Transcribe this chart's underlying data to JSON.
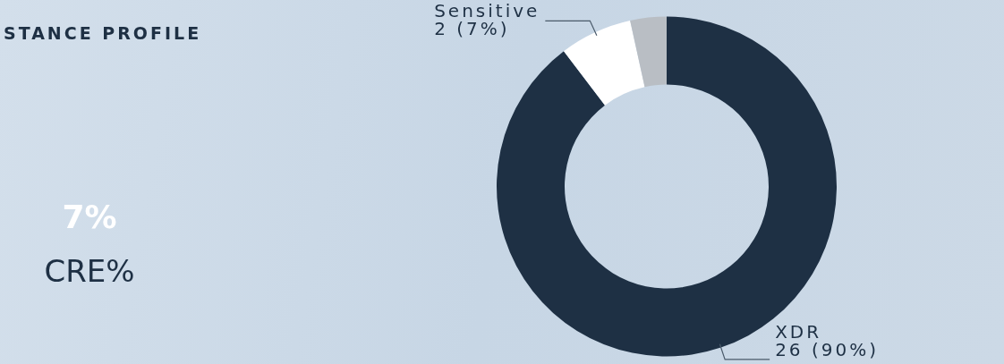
{
  "chart_data": {
    "type": "donut",
    "title": "STANCE PROFILE",
    "annotations": [
      "7%",
      "CRE%"
    ],
    "categories": [
      "XDR",
      "Sensitive",
      null
    ],
    "values": [
      26,
      2,
      1
    ],
    "colors": [
      "#1e3044",
      "#ffffff",
      "#b9bec4"
    ],
    "value_labels": [
      "26 (90%)",
      "2 (7%)",
      null
    ],
    "legend": false
  }
}
